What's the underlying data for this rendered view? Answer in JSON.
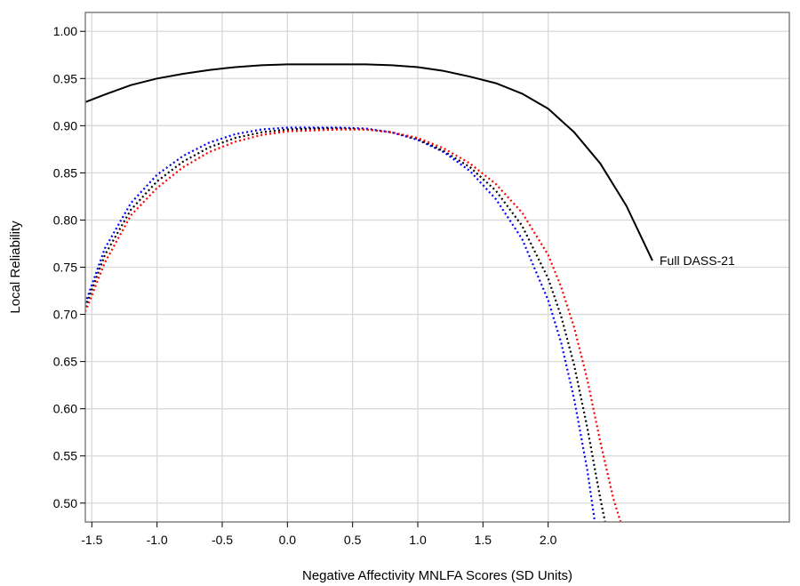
{
  "chart_data": {
    "type": "line",
    "xlabel": "Negative Affectivity MNLFA Scores (SD Units)",
    "ylabel": "Local Reliability",
    "xlim": [
      -1.55,
      3.85
    ],
    "ylim": [
      0.48,
      1.02
    ],
    "x_ticks": [
      -1.5,
      -1.0,
      -0.5,
      0.0,
      0.5,
      1.0,
      1.5,
      2.0
    ],
    "x_tick_labels": [
      "-1.5",
      "-1.0",
      "-0.5",
      "0.0",
      "0.5",
      "1.0",
      "1.5",
      "2.0"
    ],
    "y_ticks": [
      0.5,
      0.55,
      0.6,
      0.65,
      0.7,
      0.75,
      0.8,
      0.85,
      0.9,
      0.95,
      1.0
    ],
    "y_tick_labels": [
      "0.50",
      "0.55",
      "0.60",
      "0.65",
      "0.70",
      "0.75",
      "0.80",
      "0.85",
      "0.90",
      "0.95",
      "1.00"
    ],
    "grid": true,
    "annotation": "Full DASS-21",
    "series": [
      {
        "color": "#000000",
        "style": "solid",
        "x": [
          -1.55,
          -1.4,
          -1.2,
          -1.0,
          -0.8,
          -0.6,
          -0.4,
          -0.2,
          0.0,
          0.2,
          0.4,
          0.6,
          0.8,
          1.0,
          1.2,
          1.4,
          1.6,
          1.8,
          2.0,
          2.2,
          2.4,
          2.6,
          2.8
        ],
        "y": [
          0.925,
          0.933,
          0.943,
          0.95,
          0.955,
          0.959,
          0.962,
          0.964,
          0.965,
          0.965,
          0.965,
          0.965,
          0.964,
          0.962,
          0.958,
          0.952,
          0.945,
          0.934,
          0.918,
          0.893,
          0.86,
          0.815,
          0.757
        ]
      },
      {
        "color": "#0000ff",
        "style": "dotted",
        "x": [
          -1.55,
          -1.4,
          -1.2,
          -1.0,
          -0.8,
          -0.6,
          -0.4,
          -0.2,
          0.0,
          0.2,
          0.4,
          0.6,
          0.8,
          1.0,
          1.2,
          1.4,
          1.6,
          1.8,
          2.0,
          2.1,
          2.2,
          2.3,
          2.36
        ],
        "y": [
          0.712,
          0.77,
          0.818,
          0.848,
          0.868,
          0.882,
          0.891,
          0.896,
          0.898,
          0.898,
          0.898,
          0.897,
          0.893,
          0.885,
          0.872,
          0.852,
          0.822,
          0.78,
          0.715,
          0.67,
          0.61,
          0.535,
          0.478
        ]
      },
      {
        "color": "#000000",
        "style": "dotted",
        "x": [
          -1.55,
          -1.4,
          -1.2,
          -1.0,
          -0.8,
          -0.6,
          -0.4,
          -0.2,
          0.0,
          0.2,
          0.4,
          0.6,
          0.8,
          1.0,
          1.2,
          1.4,
          1.6,
          1.8,
          2.0,
          2.1,
          2.2,
          2.3,
          2.4,
          2.44
        ],
        "y": [
          0.708,
          0.763,
          0.811,
          0.841,
          0.862,
          0.877,
          0.887,
          0.893,
          0.896,
          0.897,
          0.897,
          0.896,
          0.893,
          0.886,
          0.873,
          0.856,
          0.831,
          0.794,
          0.738,
          0.698,
          0.646,
          0.58,
          0.505,
          0.478
        ]
      },
      {
        "color": "#ff0000",
        "style": "dotted",
        "x": [
          -1.55,
          -1.4,
          -1.2,
          -1.0,
          -0.8,
          -0.6,
          -0.4,
          -0.2,
          0.0,
          0.2,
          0.4,
          0.6,
          0.8,
          1.0,
          1.2,
          1.4,
          1.6,
          1.8,
          2.0,
          2.1,
          2.2,
          2.3,
          2.4,
          2.5,
          2.56
        ],
        "y": [
          0.703,
          0.755,
          0.805,
          0.834,
          0.856,
          0.872,
          0.883,
          0.89,
          0.894,
          0.895,
          0.896,
          0.896,
          0.893,
          0.887,
          0.876,
          0.86,
          0.838,
          0.808,
          0.763,
          0.729,
          0.686,
          0.631,
          0.565,
          0.505,
          0.478
        ]
      }
    ]
  }
}
